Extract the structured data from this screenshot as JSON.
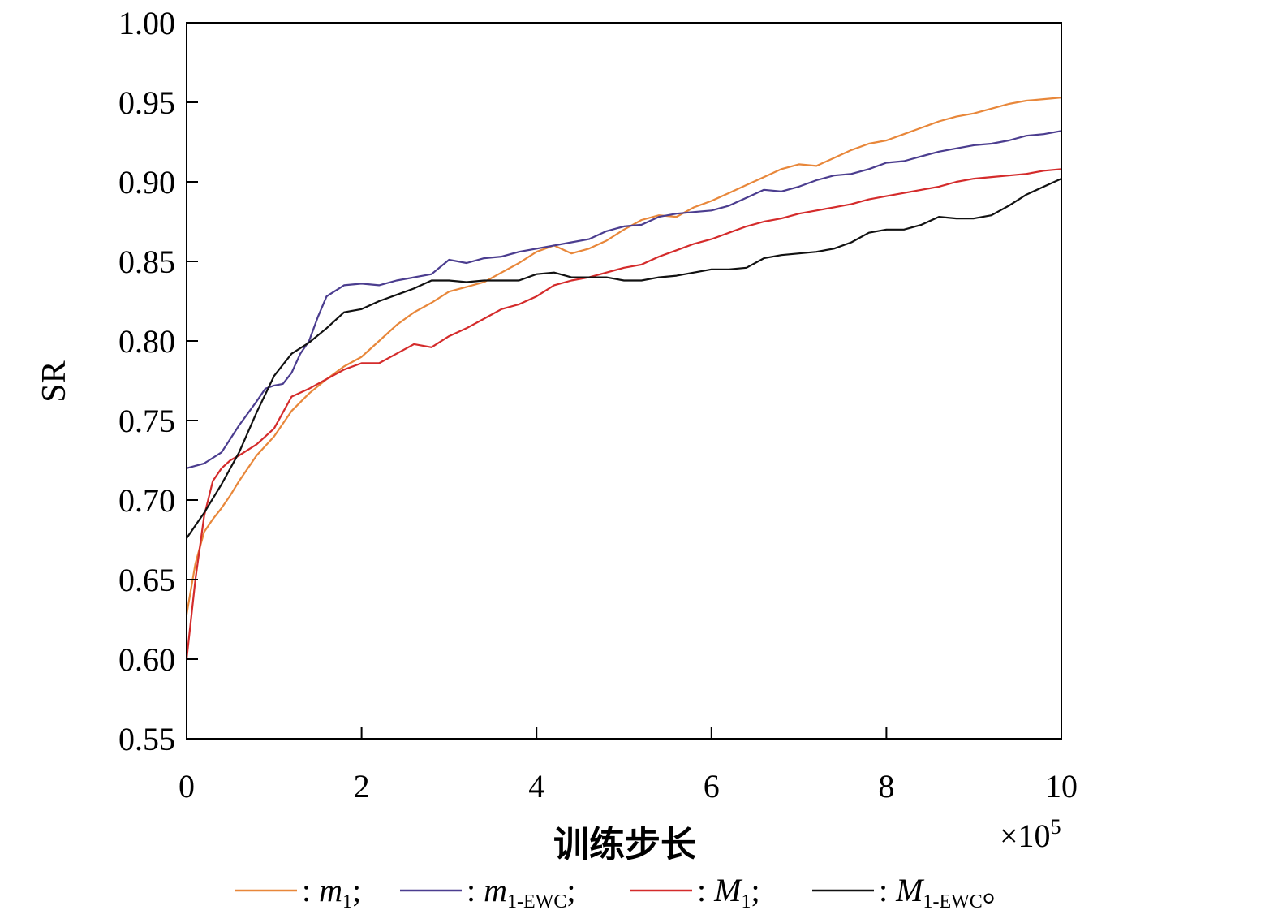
{
  "chart_data": {
    "type": "line",
    "xlabel": "训练步长",
    "ylabel": "SR",
    "x_multiplier": "×10",
    "x_multiplier_exp": "5",
    "xlim": [
      0,
      10
    ],
    "ylim": [
      0.55,
      1.0
    ],
    "xticks": [
      "0",
      "2",
      "4",
      "6",
      "8",
      "10"
    ],
    "yticks": [
      "0.55",
      "0.60",
      "0.65",
      "0.70",
      "0.75",
      "0.80",
      "0.85",
      "0.90",
      "0.95",
      "1.00"
    ],
    "grid": false,
    "legend_position": "bottom",
    "series": [
      {
        "name": "m",
        "name_sub": "1",
        "name_italic": true,
        "legend_suffix": ";",
        "color": "#e8873a",
        "x": [
          0,
          0.1,
          0.2,
          0.3,
          0.4,
          0.5,
          0.6,
          0.8,
          1.0,
          1.2,
          1.4,
          1.6,
          1.8,
          2.0,
          2.2,
          2.4,
          2.6,
          2.8,
          3.0,
          3.2,
          3.4,
          3.6,
          3.8,
          4.0,
          4.2,
          4.4,
          4.6,
          4.8,
          5.0,
          5.2,
          5.4,
          5.6,
          5.8,
          6.0,
          6.2,
          6.4,
          6.6,
          6.8,
          7.0,
          7.2,
          7.4,
          7.6,
          7.8,
          8.0,
          8.2,
          8.4,
          8.6,
          8.8,
          9.0,
          9.2,
          9.4,
          9.6,
          9.8,
          10.0
        ],
        "y": [
          0.628,
          0.66,
          0.68,
          0.688,
          0.695,
          0.703,
          0.712,
          0.728,
          0.74,
          0.756,
          0.767,
          0.776,
          0.784,
          0.79,
          0.8,
          0.81,
          0.818,
          0.824,
          0.831,
          0.834,
          0.837,
          0.843,
          0.849,
          0.856,
          0.86,
          0.855,
          0.858,
          0.863,
          0.87,
          0.876,
          0.879,
          0.878,
          0.884,
          0.888,
          0.893,
          0.898,
          0.903,
          0.908,
          0.911,
          0.91,
          0.915,
          0.92,
          0.924,
          0.926,
          0.93,
          0.934,
          0.938,
          0.941,
          0.943,
          0.946,
          0.949,
          0.951,
          0.952,
          0.953
        ]
      },
      {
        "name": "m",
        "name_sub": "1-EWC",
        "name_italic": true,
        "legend_suffix": ";",
        "color": "#4b3d8f",
        "x": [
          0,
          0.2,
          0.4,
          0.6,
          0.8,
          0.9,
          1.0,
          1.1,
          1.2,
          1.3,
          1.4,
          1.5,
          1.6,
          1.8,
          2.0,
          2.2,
          2.4,
          2.6,
          2.8,
          3.0,
          3.2,
          3.4,
          3.6,
          3.8,
          4.0,
          4.2,
          4.4,
          4.6,
          4.8,
          5.0,
          5.2,
          5.4,
          5.6,
          5.8,
          6.0,
          6.2,
          6.4,
          6.6,
          6.8,
          7.0,
          7.2,
          7.4,
          7.6,
          7.8,
          8.0,
          8.2,
          8.4,
          8.6,
          8.8,
          9.0,
          9.2,
          9.4,
          9.6,
          9.8,
          10.0
        ],
        "y": [
          0.72,
          0.723,
          0.73,
          0.747,
          0.762,
          0.77,
          0.772,
          0.773,
          0.78,
          0.792,
          0.8,
          0.815,
          0.828,
          0.835,
          0.836,
          0.835,
          0.838,
          0.84,
          0.842,
          0.851,
          0.849,
          0.852,
          0.853,
          0.856,
          0.858,
          0.86,
          0.862,
          0.864,
          0.869,
          0.872,
          0.873,
          0.878,
          0.88,
          0.881,
          0.882,
          0.885,
          0.89,
          0.895,
          0.894,
          0.897,
          0.901,
          0.904,
          0.905,
          0.908,
          0.912,
          0.913,
          0.916,
          0.919,
          0.921,
          0.923,
          0.924,
          0.926,
          0.929,
          0.93,
          0.932
        ]
      },
      {
        "name": "M",
        "name_sub": "1",
        "name_italic": true,
        "legend_suffix": ";",
        "color": "#d42b2b",
        "x": [
          0,
          0.1,
          0.2,
          0.3,
          0.4,
          0.5,
          0.6,
          0.8,
          1.0,
          1.2,
          1.4,
          1.6,
          1.8,
          2.0,
          2.2,
          2.4,
          2.6,
          2.8,
          3.0,
          3.2,
          3.4,
          3.6,
          3.8,
          4.0,
          4.2,
          4.4,
          4.6,
          4.8,
          5.0,
          5.2,
          5.4,
          5.6,
          5.8,
          6.0,
          6.2,
          6.4,
          6.6,
          6.8,
          7.0,
          7.2,
          7.4,
          7.6,
          7.8,
          8.0,
          8.2,
          8.4,
          8.6,
          8.8,
          9.0,
          9.2,
          9.4,
          9.6,
          9.8,
          10.0
        ],
        "y": [
          0.6,
          0.65,
          0.69,
          0.712,
          0.72,
          0.725,
          0.728,
          0.735,
          0.745,
          0.765,
          0.77,
          0.776,
          0.782,
          0.786,
          0.786,
          0.792,
          0.798,
          0.796,
          0.803,
          0.808,
          0.814,
          0.82,
          0.823,
          0.828,
          0.835,
          0.838,
          0.84,
          0.843,
          0.846,
          0.848,
          0.853,
          0.857,
          0.861,
          0.864,
          0.868,
          0.872,
          0.875,
          0.877,
          0.88,
          0.882,
          0.884,
          0.886,
          0.889,
          0.891,
          0.893,
          0.895,
          0.897,
          0.9,
          0.902,
          0.903,
          0.904,
          0.905,
          0.907,
          0.908
        ]
      },
      {
        "name": "M",
        "name_sub": "1-EWC",
        "name_italic": true,
        "legend_suffix": "。",
        "color": "#111111",
        "x": [
          0,
          0.2,
          0.4,
          0.6,
          0.8,
          1.0,
          1.2,
          1.4,
          1.6,
          1.8,
          2.0,
          2.2,
          2.4,
          2.6,
          2.8,
          3.0,
          3.2,
          3.4,
          3.6,
          3.8,
          4.0,
          4.2,
          4.4,
          4.6,
          4.8,
          5.0,
          5.2,
          5.4,
          5.6,
          5.8,
          6.0,
          6.2,
          6.4,
          6.6,
          6.8,
          7.0,
          7.2,
          7.4,
          7.6,
          7.8,
          8.0,
          8.2,
          8.4,
          8.6,
          8.8,
          9.0,
          9.2,
          9.4,
          9.6,
          9.8,
          10.0
        ],
        "y": [
          0.676,
          0.692,
          0.71,
          0.73,
          0.755,
          0.778,
          0.792,
          0.799,
          0.808,
          0.818,
          0.82,
          0.825,
          0.829,
          0.833,
          0.838,
          0.838,
          0.837,
          0.838,
          0.838,
          0.838,
          0.842,
          0.843,
          0.84,
          0.84,
          0.84,
          0.838,
          0.838,
          0.84,
          0.841,
          0.843,
          0.845,
          0.845,
          0.846,
          0.852,
          0.854,
          0.855,
          0.856,
          0.858,
          0.862,
          0.868,
          0.87,
          0.87,
          0.873,
          0.878,
          0.877,
          0.877,
          0.879,
          0.885,
          0.892,
          0.897,
          0.902
        ]
      }
    ]
  }
}
